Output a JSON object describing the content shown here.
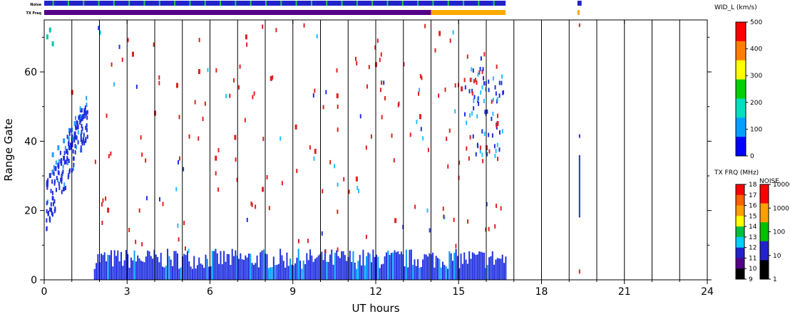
{
  "chart_data": {
    "type": "heatmap",
    "xlabel": "UT hours",
    "ylabel": "Range Gate",
    "xlim": [
      0,
      24
    ],
    "ylim": [
      0,
      75
    ],
    "xticks": [
      "0",
      "3",
      "6",
      "9",
      "12",
      "15",
      "18",
      "21",
      "24"
    ],
    "yticks": [
      "0",
      "20",
      "40",
      "60"
    ],
    "vertical_gridlines_hours": [
      1,
      2,
      3,
      4,
      5,
      6,
      7,
      8,
      9,
      10,
      11,
      12,
      13,
      14,
      15,
      16,
      17,
      18,
      19,
      20,
      21,
      22,
      23
    ],
    "data_coverage_hours": [
      [
        0,
        16.7
      ],
      [
        19.3,
        19.45
      ]
    ],
    "top_strips": {
      "noise_label": "Noise",
      "txfreq_label": "TX Freq",
      "noise_color": "#2222cc",
      "txfreq_before_14": "#550088",
      "txfreq_after_14": "#ffaa00"
    },
    "colorbar_width": {
      "title": "WID_L (km/s)",
      "ticks": [
        "0",
        "100",
        "200",
        "300",
        "400",
        "500"
      ],
      "range": [
        0,
        500
      ],
      "colors": [
        "#0000ff",
        "#00a0ff",
        "#00e0c0",
        "#00d000",
        "#ffff00",
        "#ff8000",
        "#ff0000"
      ]
    },
    "colorbar_txfreq": {
      "title": "TX FRQ (MHz)",
      "ticks": [
        "9",
        "10",
        "11",
        "12",
        "13",
        "14",
        "15",
        "16",
        "17",
        "18"
      ],
      "colors": [
        "#000000",
        "#550088",
        "#2222cc",
        "#00d0ff",
        "#00c040",
        "#ffff00",
        "#ffa000",
        "#ff6000",
        "#ff0000"
      ]
    },
    "colorbar_noise": {
      "title": "NOISE",
      "ticks": [
        "1",
        "10",
        "100",
        "1000",
        "10000"
      ],
      "colors": [
        "#000000",
        "#2222cc",
        "#00c000",
        "#ffa000",
        "#ff0000"
      ]
    },
    "series": [
      {
        "name": "",
        "color": "#2030e0",
        "x": [
          0.1,
          0.2,
          0.3,
          0.4,
          0.5,
          0.6,
          0.7,
          0.8,
          0.9,
          1.0,
          1.1,
          1.2,
          1.3,
          1.4,
          1.5
        ],
        "y": [
          28,
          30,
          31,
          32,
          33,
          34,
          35,
          37,
          38,
          40,
          42,
          44,
          46,
          47,
          48
        ]
      },
      {
        "name": "",
        "color": "#20a0ff",
        "x": [
          0.3,
          0.5,
          0.7,
          0.9,
          1.1,
          1.3
        ],
        "y": [
          36,
          38,
          40,
          43,
          45,
          47
        ]
      },
      {
        "name": "",
        "color": "#00c8b0",
        "x": [
          0.1,
          0.2,
          0.3
        ],
        "y": [
          70,
          72,
          68
        ]
      },
      {
        "name": "",
        "color": "#e02020",
        "x": [
          1.0,
          2.3,
          3.2,
          4.0,
          4.8,
          5.6,
          6.2,
          6.9,
          7.3,
          7.9,
          8.2,
          9.1,
          9.8,
          10.6,
          11.3,
          12.0,
          12.7,
          13.6,
          14.3,
          15.1,
          16.0,
          16.4
        ],
        "y": [
          54,
          20,
          65,
          48,
          56,
          60,
          35,
          41,
          70,
          26,
          58,
          44,
          37,
          53,
          29,
          62,
          17,
          47,
          71,
          55,
          38,
          45
        ]
      }
    ],
    "near_range_band": {
      "x_range": [
        1.8,
        16.7
      ],
      "gate_range": [
        0,
        9
      ],
      "color": "#2030e0"
    }
  }
}
